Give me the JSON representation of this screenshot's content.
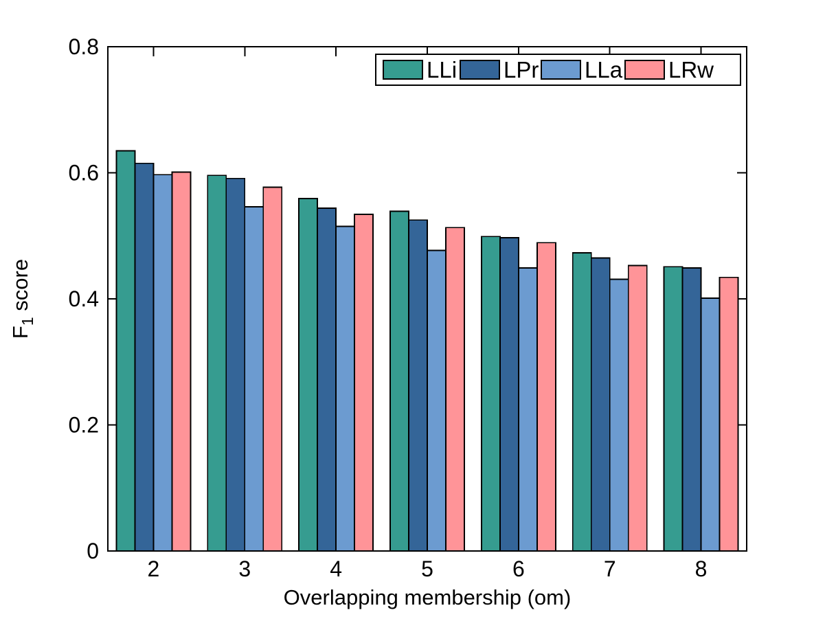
{
  "figure": {
    "background": "#ffffff",
    "axis_color": "#000000"
  },
  "chart_data": {
    "type": "bar",
    "title": "",
    "xlabel": "Overlapping membership (om)",
    "ylabel_main": "F",
    "ylabel_sub": "1",
    "ylabel_rest": " score",
    "categories": [
      "2",
      "3",
      "4",
      "5",
      "6",
      "7",
      "8"
    ],
    "series": [
      {
        "name": "LLi",
        "color": "#369C90",
        "values": [
          0.635,
          0.596,
          0.559,
          0.539,
          0.499,
          0.473,
          0.451
        ]
      },
      {
        "name": "LPr",
        "color": "#346598",
        "values": [
          0.615,
          0.591,
          0.544,
          0.525,
          0.497,
          0.465,
          0.449
        ]
      },
      {
        "name": "LLa",
        "color": "#6C9BD0",
        "values": [
          0.597,
          0.546,
          0.515,
          0.477,
          0.449,
          0.431,
          0.401
        ]
      },
      {
        "name": "LRw",
        "color": "#FF9498",
        "values": [
          0.601,
          0.577,
          0.534,
          0.513,
          0.489,
          0.453,
          0.434
        ]
      }
    ],
    "ylim": [
      0,
      0.8
    ],
    "yticks": [
      "0",
      "0.2",
      "0.4",
      "0.6",
      "0.8"
    ],
    "ytick_values": [
      0,
      0.2,
      0.4,
      0.6,
      0.8
    ],
    "grid": "off",
    "legend_position": "top-right",
    "bar_edge_color": "#000000"
  }
}
